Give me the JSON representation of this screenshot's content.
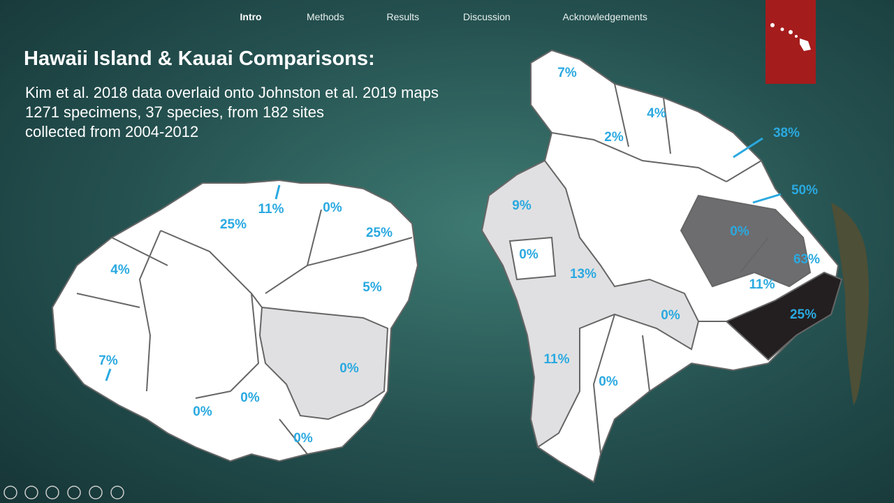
{
  "nav": {
    "items": [
      "Intro",
      "Methods",
      "Results",
      "Discussion",
      "Acknowledgements"
    ],
    "active": 0
  },
  "slide": {
    "title": "Hawaii Island & Kauai Comparisons:",
    "body": [
      "Kim et al. 2018 data overlaid onto Johnston et al. 2019 maps",
      "1271 specimens, 37 species, from 182 sites",
      "collected from 2004-2012"
    ]
  },
  "kauai": {
    "labels": [
      "25%",
      "11%",
      "0%",
      "25%",
      "4%",
      "5%",
      "7%",
      "0%",
      "0%",
      "0%",
      "0%"
    ]
  },
  "hawaii": {
    "labels": [
      "7%",
      "4%",
      "2%",
      "38%",
      "50%",
      "9%",
      "0%",
      "0%",
      "13%",
      "63%",
      "11%",
      "0%",
      "25%",
      "11%",
      "0%"
    ]
  }
}
